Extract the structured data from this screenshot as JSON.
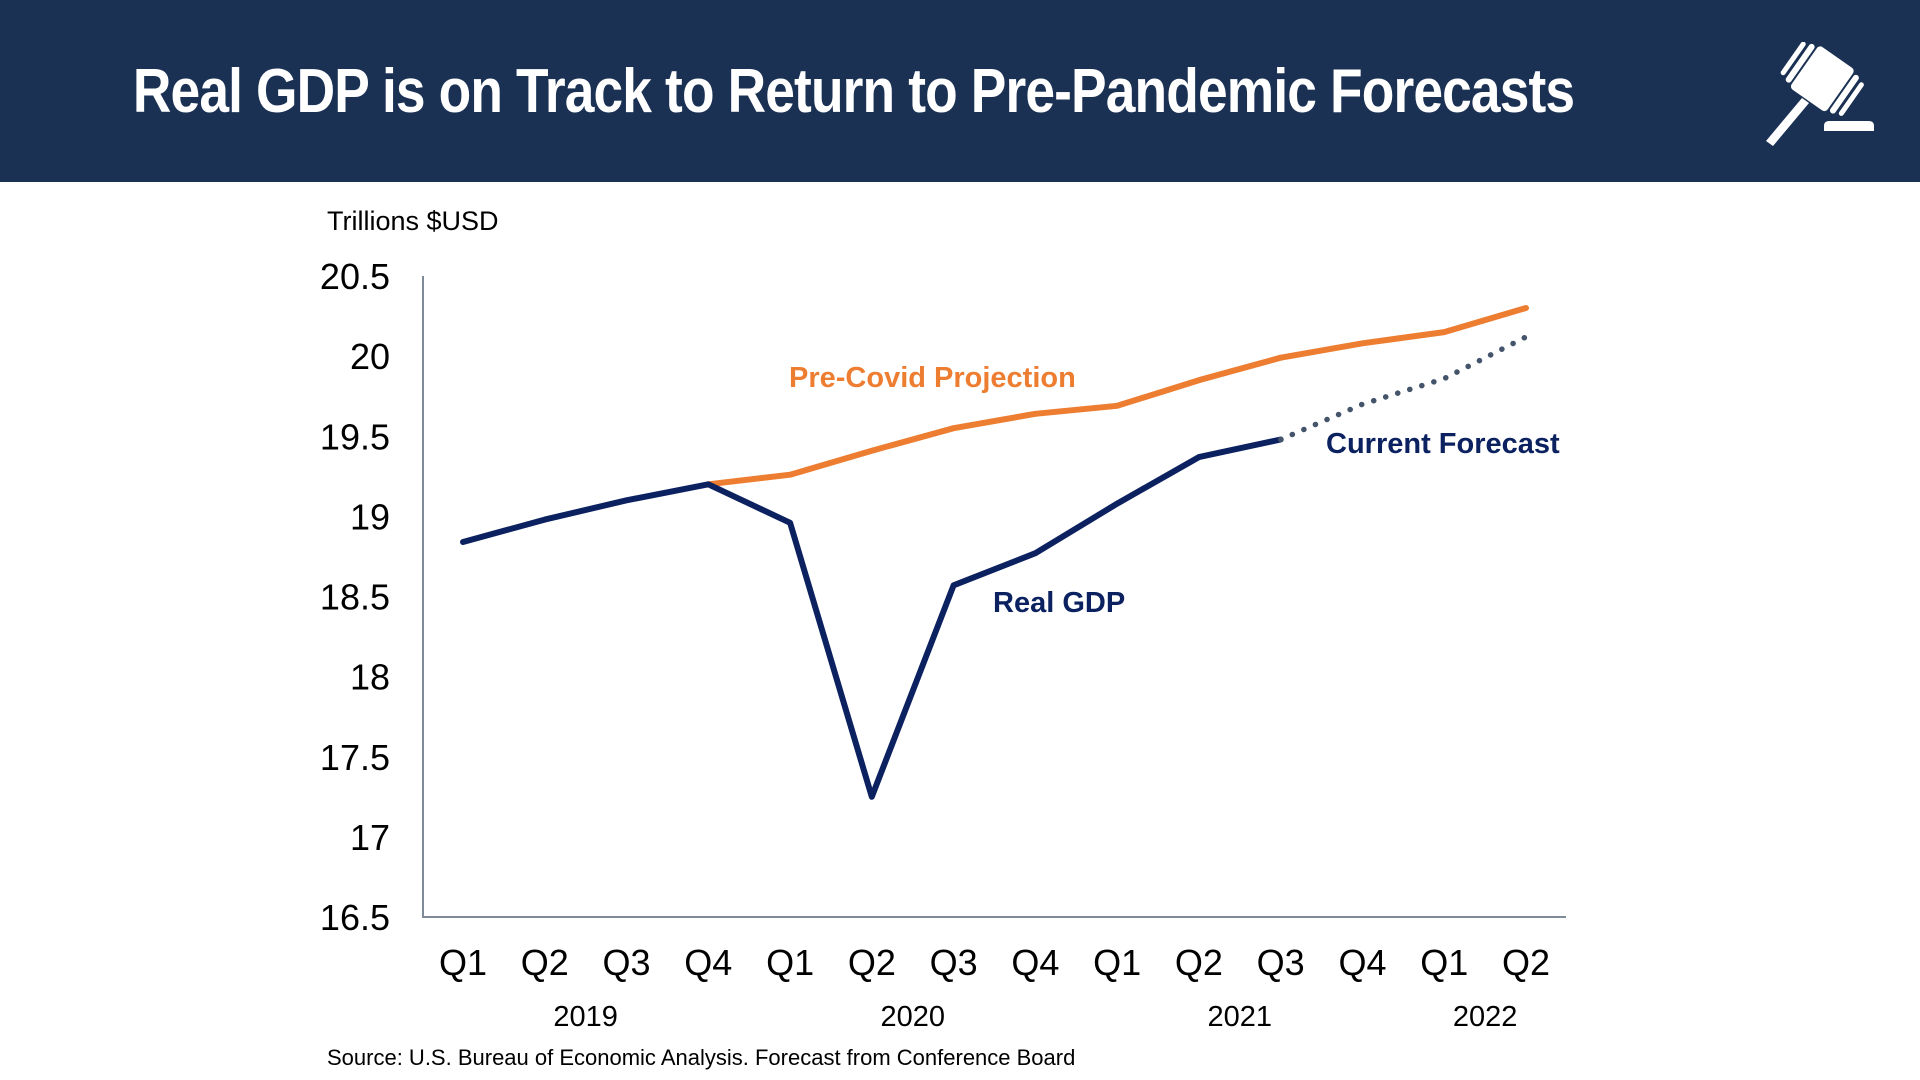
{
  "header": {
    "title": "Real GDP is on Track to Return to Pre-Pandemic Forecasts",
    "icon": "gavel-icon",
    "background_color": "#1b3154"
  },
  "chart_data": {
    "type": "line",
    "title": "Real GDP is on Track to Return to Pre-Pandemic Forecasts",
    "ylabel": "Trillions $USD",
    "xlabel": "",
    "ylim": [
      16.5,
      20.5
    ],
    "yticks": [
      "20.5",
      "20",
      "19.5",
      "19",
      "18.5",
      "18",
      "17.5",
      "17",
      "16.5"
    ],
    "ytick_values": [
      20.5,
      20,
      19.5,
      19,
      18.5,
      18,
      17.5,
      17,
      16.5
    ],
    "categories": [
      "Q1",
      "Q2",
      "Q3",
      "Q4",
      "Q1",
      "Q2",
      "Q3",
      "Q4",
      "Q1",
      "Q2",
      "Q3",
      "Q4",
      "Q1",
      "Q2"
    ],
    "years": [
      {
        "label": "2019",
        "center_index": 1.5
      },
      {
        "label": "2020",
        "center_index": 5.5
      },
      {
        "label": "2021",
        "center_index": 9.5
      },
      {
        "label": "2022",
        "center_index": 12.5
      }
    ],
    "grid": false,
    "series": [
      {
        "name": "Real GDP",
        "color": "#0b2160",
        "style": "solid",
        "start_index": 0,
        "values": [
          18.84,
          18.98,
          19.1,
          19.2,
          18.96,
          17.25,
          18.57,
          18.77,
          19.08,
          19.37,
          19.48
        ]
      },
      {
        "name": "Pre-Covid Projection",
        "color": "#ed7d31",
        "style": "solid",
        "start_index": 3,
        "values": [
          19.2,
          19.26,
          19.41,
          19.55,
          19.64,
          19.69,
          19.85,
          19.99,
          20.08,
          20.15,
          20.3
        ]
      },
      {
        "name": "Current Forecast",
        "color": "#44546a",
        "style": "dotted",
        "start_index": 10,
        "values": [
          19.48,
          19.7,
          19.86,
          20.12
        ]
      }
    ],
    "annotations": [
      {
        "text": "Pre-Covid Projection",
        "color": "#ed7d31",
        "series": "Pre-Covid Projection"
      },
      {
        "text": "Real GDP",
        "color": "#0b2160",
        "series": "Real GDP"
      },
      {
        "text": "Current Forecast",
        "color": "#0b2160",
        "series": "Current Forecast"
      }
    ],
    "source": "Source: U.S. Bureau of Economic Analysis. Forecast from Conference Board"
  }
}
